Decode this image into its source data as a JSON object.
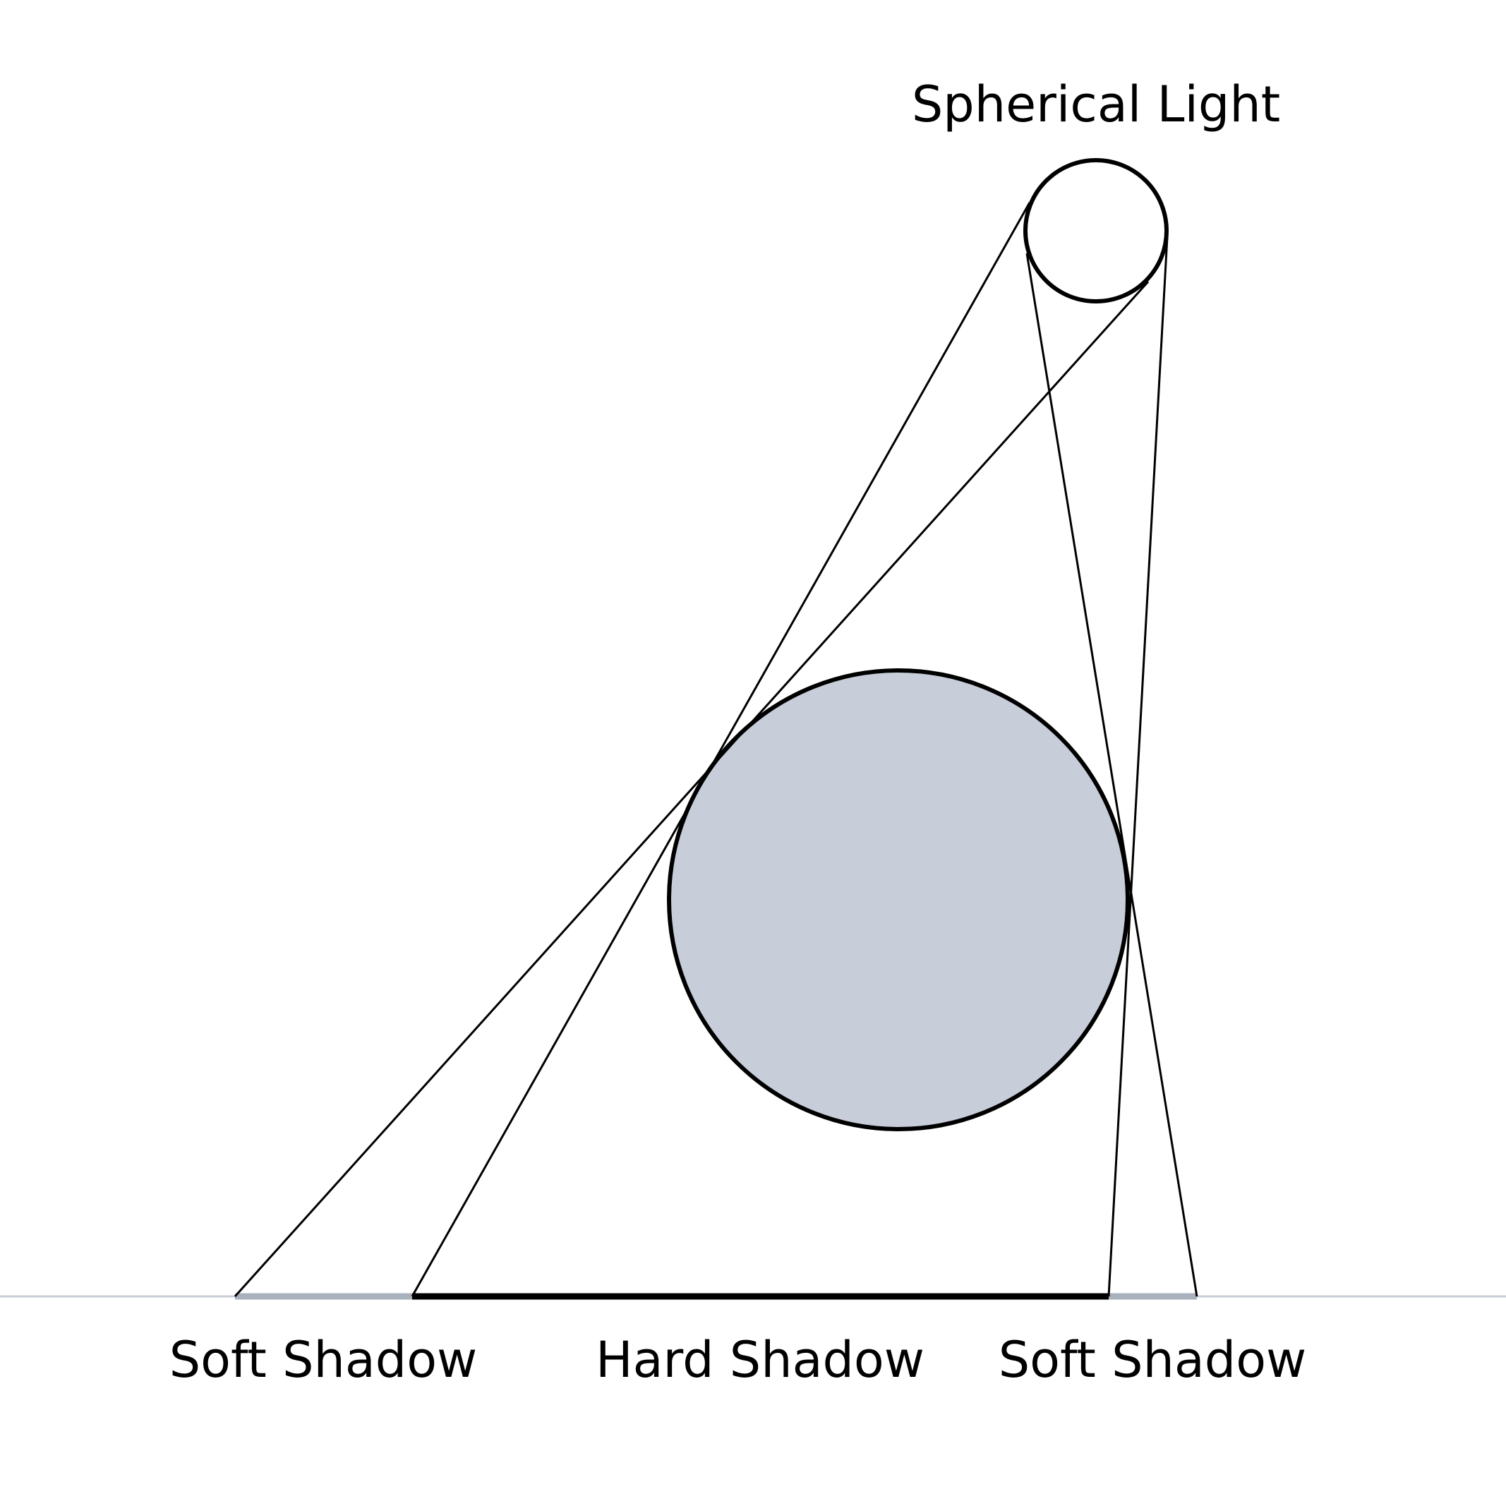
{
  "labels": {
    "light": "Spherical Light",
    "soft_shadow_left": "Soft Shadow",
    "hard_shadow": "Hard Shadow",
    "soft_shadow_right": "Soft Shadow"
  },
  "colors": {
    "background": "#ffffff",
    "outline": "#000000",
    "occluder_fill": "#c7cdd9",
    "ground_line": "#c9ced6",
    "soft_shadow": "#a9b1bd",
    "hard_shadow": "#000000"
  }
}
